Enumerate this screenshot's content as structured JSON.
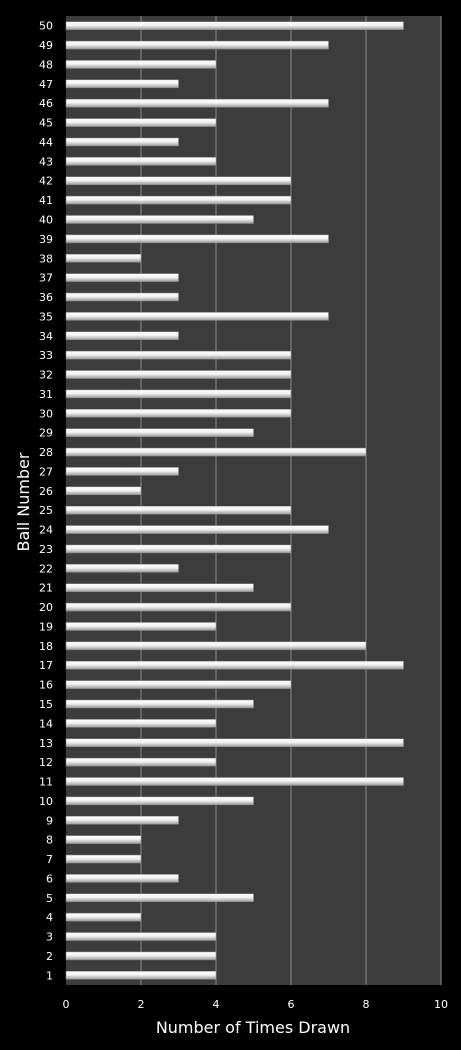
{
  "chart_data": {
    "type": "bar",
    "orientation": "horizontal",
    "categories": [
      "1",
      "2",
      "3",
      "4",
      "5",
      "6",
      "7",
      "8",
      "9",
      "10",
      "11",
      "12",
      "13",
      "14",
      "15",
      "16",
      "17",
      "18",
      "19",
      "20",
      "21",
      "22",
      "23",
      "24",
      "25",
      "26",
      "27",
      "28",
      "29",
      "30",
      "31",
      "32",
      "33",
      "34",
      "35",
      "36",
      "37",
      "38",
      "39",
      "40",
      "41",
      "42",
      "43",
      "44",
      "45",
      "46",
      "47",
      "48",
      "49",
      "50"
    ],
    "values": [
      4,
      4,
      4,
      2,
      5,
      3,
      2,
      2,
      3,
      5,
      9,
      4,
      9,
      4,
      5,
      6,
      9,
      8,
      4,
      6,
      5,
      3,
      6,
      7,
      6,
      2,
      3,
      8,
      5,
      6,
      6,
      6,
      6,
      3,
      7,
      3,
      3,
      2,
      7,
      5,
      6,
      6,
      4,
      3,
      4,
      7,
      3,
      4,
      7,
      9
    ],
    "xlabel": "Number of Times Drawn",
    "ylabel": "Ball Number",
    "xlim": [
      0,
      10
    ],
    "xticks": [
      "0",
      "2",
      "4",
      "6",
      "8",
      "10"
    ],
    "grid": true,
    "legend": "none",
    "colors": {
      "background": "#000000",
      "plot_area": "#3c3c3c",
      "gridline": "#8c8c8c",
      "bar_light": "#ffffff",
      "bar_dark": "#9a9a9a"
    }
  }
}
